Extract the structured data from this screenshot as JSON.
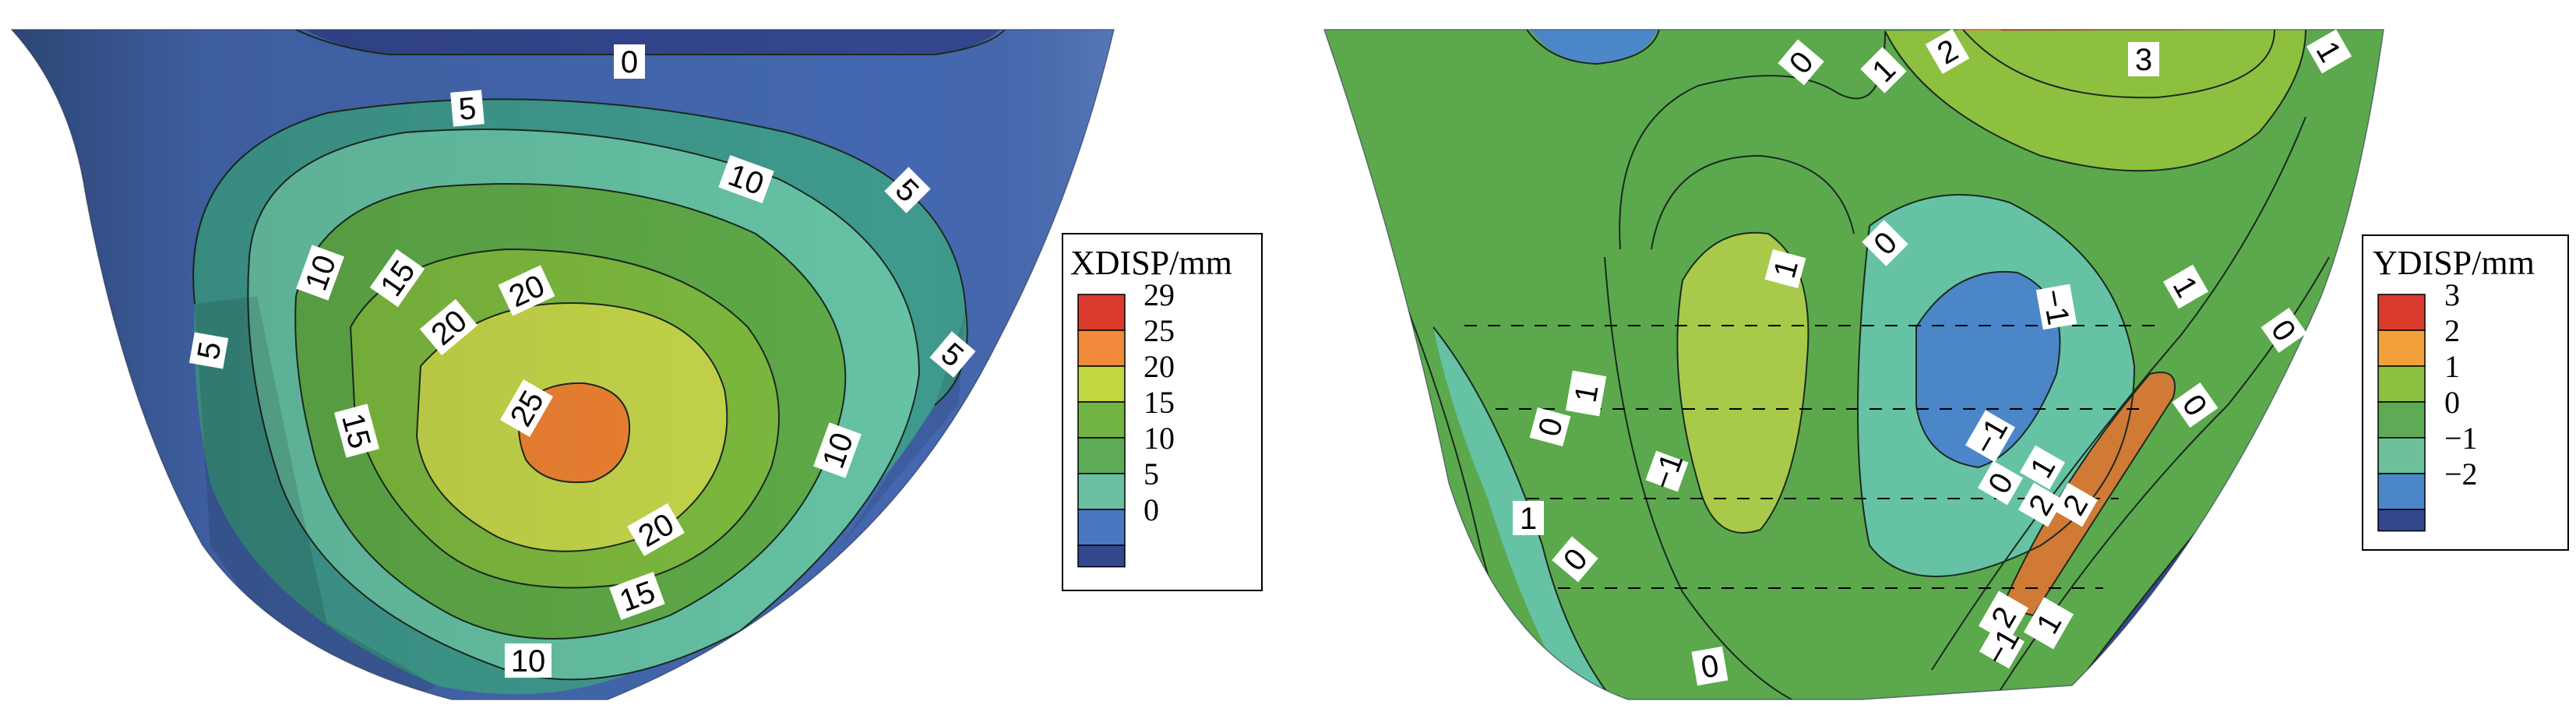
{
  "panels": [
    {
      "id": "xdisp",
      "legend": {
        "title": "XDISP/mm",
        "entries": [
          {
            "value": "29",
            "color": "#d93a2b"
          },
          {
            "value": "25",
            "color": "#f08a3a"
          },
          {
            "value": "20",
            "color": "#c2d63f"
          },
          {
            "value": "15",
            "color": "#72b544"
          },
          {
            "value": "10",
            "color": "#5eab56"
          },
          {
            "value": "5",
            "color": "#6cc0a2"
          },
          {
            "value": "0",
            "color": "#4a78c0"
          }
        ],
        "bottom_swatch_color": "#33478f"
      },
      "contour_labels": [
        "0",
        "5",
        "10",
        "5",
        "10",
        "15",
        "20",
        "20",
        "25",
        "15",
        "20",
        "15",
        "10",
        "5",
        "10",
        "5"
      ]
    },
    {
      "id": "ydisp",
      "legend": {
        "title": "YDISP/mm",
        "entries": [
          {
            "value": "3",
            "color": "#d93a2b"
          },
          {
            "value": "2",
            "color": "#f2a03a"
          },
          {
            "value": "1",
            "color": "#8ec040"
          },
          {
            "value": "0",
            "color": "#5eab56"
          },
          {
            "value": "−1",
            "color": "#6cc09a"
          },
          {
            "value": "−2",
            "color": "#4b86c8"
          }
        ],
        "bottom_swatch_color": "#33478f"
      },
      "contour_labels": [
        "0",
        "1",
        "2",
        "3",
        "1",
        "1",
        "0",
        "−1",
        "1",
        "0",
        "−1",
        "0",
        "1",
        "0",
        "2",
        "2",
        "1",
        "0",
        "−1",
        "1",
        "0",
        "0",
        "2",
        "1",
        "−1",
        "0",
        "1",
        "−1"
      ]
    }
  ]
}
